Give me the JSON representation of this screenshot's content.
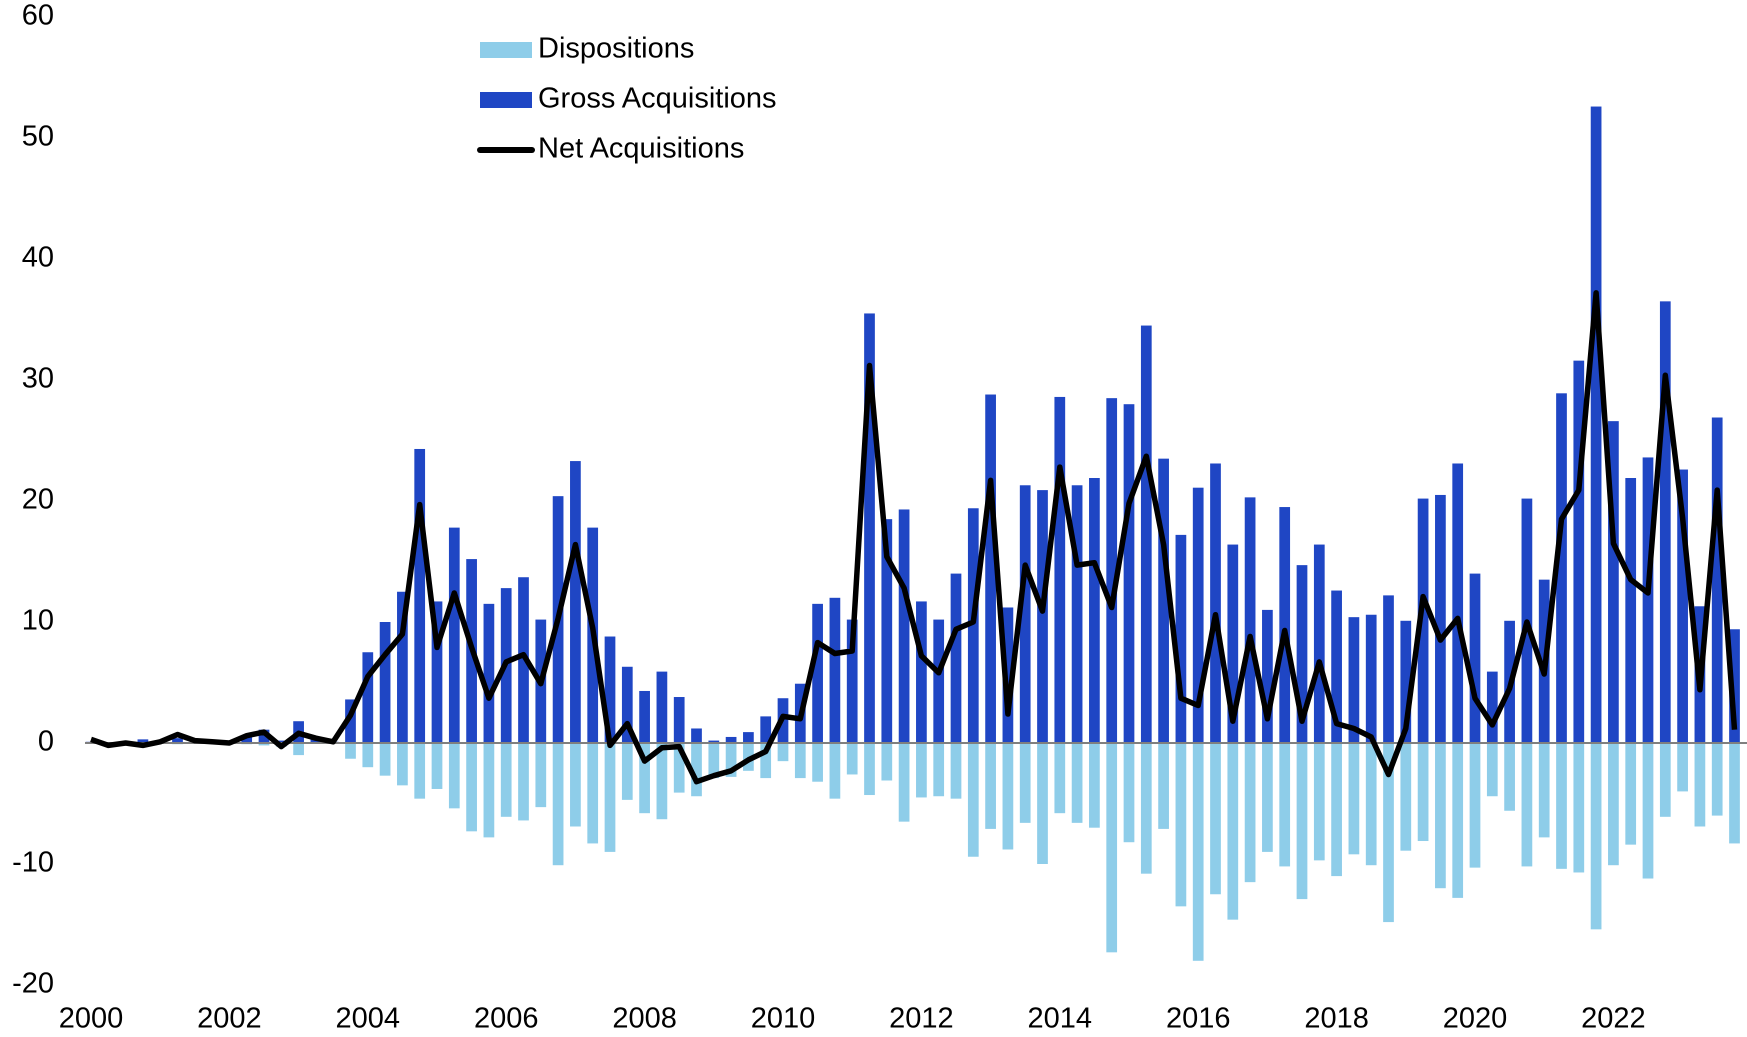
{
  "chart_data": {
    "type": "bar",
    "categories": [
      "2000",
      null,
      null,
      null,
      null,
      null,
      null,
      null,
      "2002",
      null,
      null,
      null,
      null,
      null,
      null,
      null,
      "2004",
      null,
      null,
      null,
      null,
      null,
      null,
      null,
      "2006",
      null,
      null,
      null,
      null,
      null,
      null,
      null,
      "2008",
      null,
      null,
      null,
      null,
      null,
      null,
      null,
      "2010",
      null,
      null,
      null,
      null,
      null,
      null,
      null,
      "2012",
      null,
      null,
      null,
      null,
      null,
      null,
      null,
      "2014",
      null,
      null,
      null,
      null,
      null,
      null,
      null,
      "2016",
      null,
      null,
      null,
      null,
      null,
      null,
      null,
      "2018",
      null,
      null,
      null,
      null,
      null,
      null,
      null,
      "2020",
      null,
      null,
      null,
      null,
      null,
      null,
      null,
      "2022",
      null,
      null,
      null,
      null,
      null,
      null,
      null
    ],
    "series": [
      {
        "name": "Dispositions",
        "type": "bar",
        "color": "#8ecde9",
        "values": [
          0,
          -0.1,
          0,
          0,
          0,
          -0.1,
          0,
          0,
          0,
          -0.1,
          -0.2,
          -0.3,
          -1.0,
          0,
          0,
          -1.3,
          -2,
          -2.7,
          -3.5,
          -4.6,
          -3.8,
          -5.4,
          -7.3,
          -7.8,
          -6.1,
          -6.4,
          -5.3,
          -10.1,
          -6.9,
          -8.3,
          -9,
          -4.7,
          -5.8,
          -6.3,
          -4.1,
          -4.4,
          -2.9,
          -2.8,
          -2.3,
          -2.9,
          -1.5,
          -2.9,
          -3.2,
          -4.6,
          -2.6,
          -4.3,
          -3.1,
          -6.5,
          -4.5,
          -4.4,
          -4.6,
          -9.4,
          -7.1,
          -8.8,
          -6.6,
          -10,
          -5.8,
          -6.6,
          -7,
          -17.3,
          -8.2,
          -10.8,
          -7.1,
          -13.5,
          -18,
          -12.5,
          -14.6,
          -11.5,
          -9,
          -10.2,
          -12.9,
          -9.7,
          -11,
          -9.2,
          -10.1,
          -14.8,
          -8.9,
          -8.1,
          -12,
          -12.8,
          -10.3,
          -4.4,
          -5.6,
          -10.2,
          -7.8,
          -10.4,
          -10.7,
          -15.4,
          -10.1,
          -8.4,
          -11.2,
          -6.1,
          -4,
          -6.9,
          -6,
          -8.3
        ]
      },
      {
        "name": "Gross Acquisitions",
        "type": "bar",
        "color": "#1f46c4",
        "values": [
          0.1,
          0,
          0.1,
          0.3,
          0.1,
          0.4,
          0.1,
          0.1,
          0.1,
          0.5,
          1.1,
          0.2,
          1.8,
          0.3,
          0.1,
          3.6,
          7.5,
          10,
          12.5,
          24.3,
          11.7,
          17.8,
          15.2,
          11.5,
          12.8,
          13.7,
          10.2,
          20.4,
          23.3,
          17.8,
          8.8,
          6.3,
          4.3,
          5.9,
          3.8,
          1.2,
          0.2,
          0.5,
          0.9,
          2.2,
          3.7,
          4.9,
          11.5,
          12,
          10.2,
          35.5,
          18.5,
          19.3,
          11.7,
          10.2,
          14,
          19.4,
          28.8,
          11.2,
          21.3,
          20.9,
          28.6,
          21.3,
          21.9,
          28.5,
          28,
          34.5,
          23.5,
          17.2,
          21.1,
          23.1,
          16.4,
          20.3,
          11,
          19.5,
          14.7,
          16.4,
          12.6,
          10.4,
          10.6,
          12.2,
          10.1,
          20.2,
          20.5,
          23.1,
          14,
          5.9,
          10.1,
          20.2,
          13.5,
          28.9,
          31.6,
          52.6,
          26.6,
          21.9,
          23.6,
          36.5,
          22.6,
          11.3,
          26.9,
          9.4
        ]
      },
      {
        "name": "Net Acquisitions",
        "type": "line",
        "color": "#000000",
        "values": [
          0.3,
          -0.2,
          0,
          -0.2,
          0.1,
          0.7,
          0.2,
          0.1,
          0,
          0.6,
          0.9,
          -0.3,
          0.8,
          0.4,
          0.1,
          2.3,
          5.5,
          7.3,
          9,
          19.7,
          7.9,
          12.4,
          7.9,
          3.7,
          6.7,
          7.3,
          4.9,
          10.3,
          16.4,
          9.5,
          -0.2,
          1.6,
          -1.5,
          -0.4,
          -0.3,
          -3.2,
          -2.7,
          -2.3,
          -1.4,
          -0.7,
          2.2,
          2,
          8.3,
          7.4,
          7.6,
          31.2,
          15.4,
          12.8,
          7.2,
          5.8,
          9.4,
          10,
          21.7,
          2.4,
          14.7,
          10.9,
          22.8,
          14.7,
          14.9,
          11.2,
          19.8,
          23.7,
          16.4,
          3.7,
          3.1,
          10.6,
          1.8,
          8.8,
          2,
          9.3,
          1.8,
          6.7,
          1.6,
          1.2,
          0.5,
          -2.6,
          1.2,
          12.1,
          8.5,
          10.3,
          3.7,
          1.5,
          4.5,
          10,
          5.7,
          18.5,
          20.9,
          37.2,
          16.5,
          13.5,
          12.4,
          30.4,
          18.6,
          4.4,
          20.9,
          1.1
        ]
      }
    ],
    "ylim": [
      -20,
      60
    ],
    "yticks": [
      -20,
      -10,
      0,
      10,
      20,
      30,
      40,
      50,
      60
    ],
    "grid": false,
    "legend": "upper center-left"
  }
}
